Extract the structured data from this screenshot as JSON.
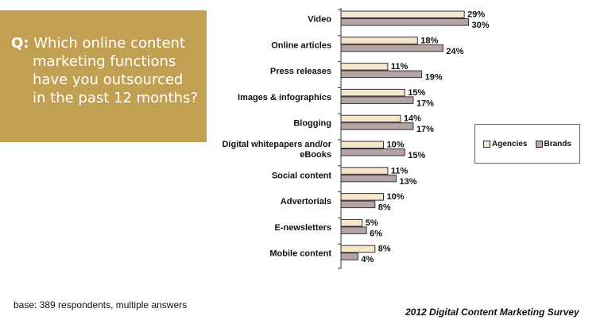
{
  "question": {
    "prefix": "Q:",
    "lines": [
      "Which online content",
      "marketing functions",
      "have you outsourced",
      "in the past 12 months?"
    ]
  },
  "colors": {
    "question_box": "#c2a053",
    "agencies": "#f6e6cc",
    "brands": "#b6a4a4",
    "bar_stroke": "#333333"
  },
  "chart_data": {
    "type": "bar",
    "orientation": "horizontal",
    "categories": [
      [
        "Video"
      ],
      [
        "Online articles"
      ],
      [
        "Press releases"
      ],
      [
        "Images & infographics"
      ],
      [
        "Blogging"
      ],
      [
        "Digital whitepapers and/or",
        "eBooks"
      ],
      [
        "Social content"
      ],
      [
        "Advertorials"
      ],
      [
        "E-newsletters"
      ],
      [
        "Mobile content"
      ]
    ],
    "series": [
      {
        "name": "Agencies",
        "values": [
          29,
          18,
          11,
          15,
          14,
          10,
          11,
          10,
          5,
          8
        ]
      },
      {
        "name": "Brands",
        "values": [
          30,
          24,
          19,
          17,
          17,
          15,
          13,
          8,
          6,
          4
        ]
      }
    ],
    "value_suffix": "%",
    "xlim": [
      0,
      40
    ],
    "grid": false,
    "legend_position": "right"
  },
  "footer": {
    "base_note": "base:  389 respondents, multiple answers",
    "source": "2012 Digital Content Marketing Survey"
  }
}
